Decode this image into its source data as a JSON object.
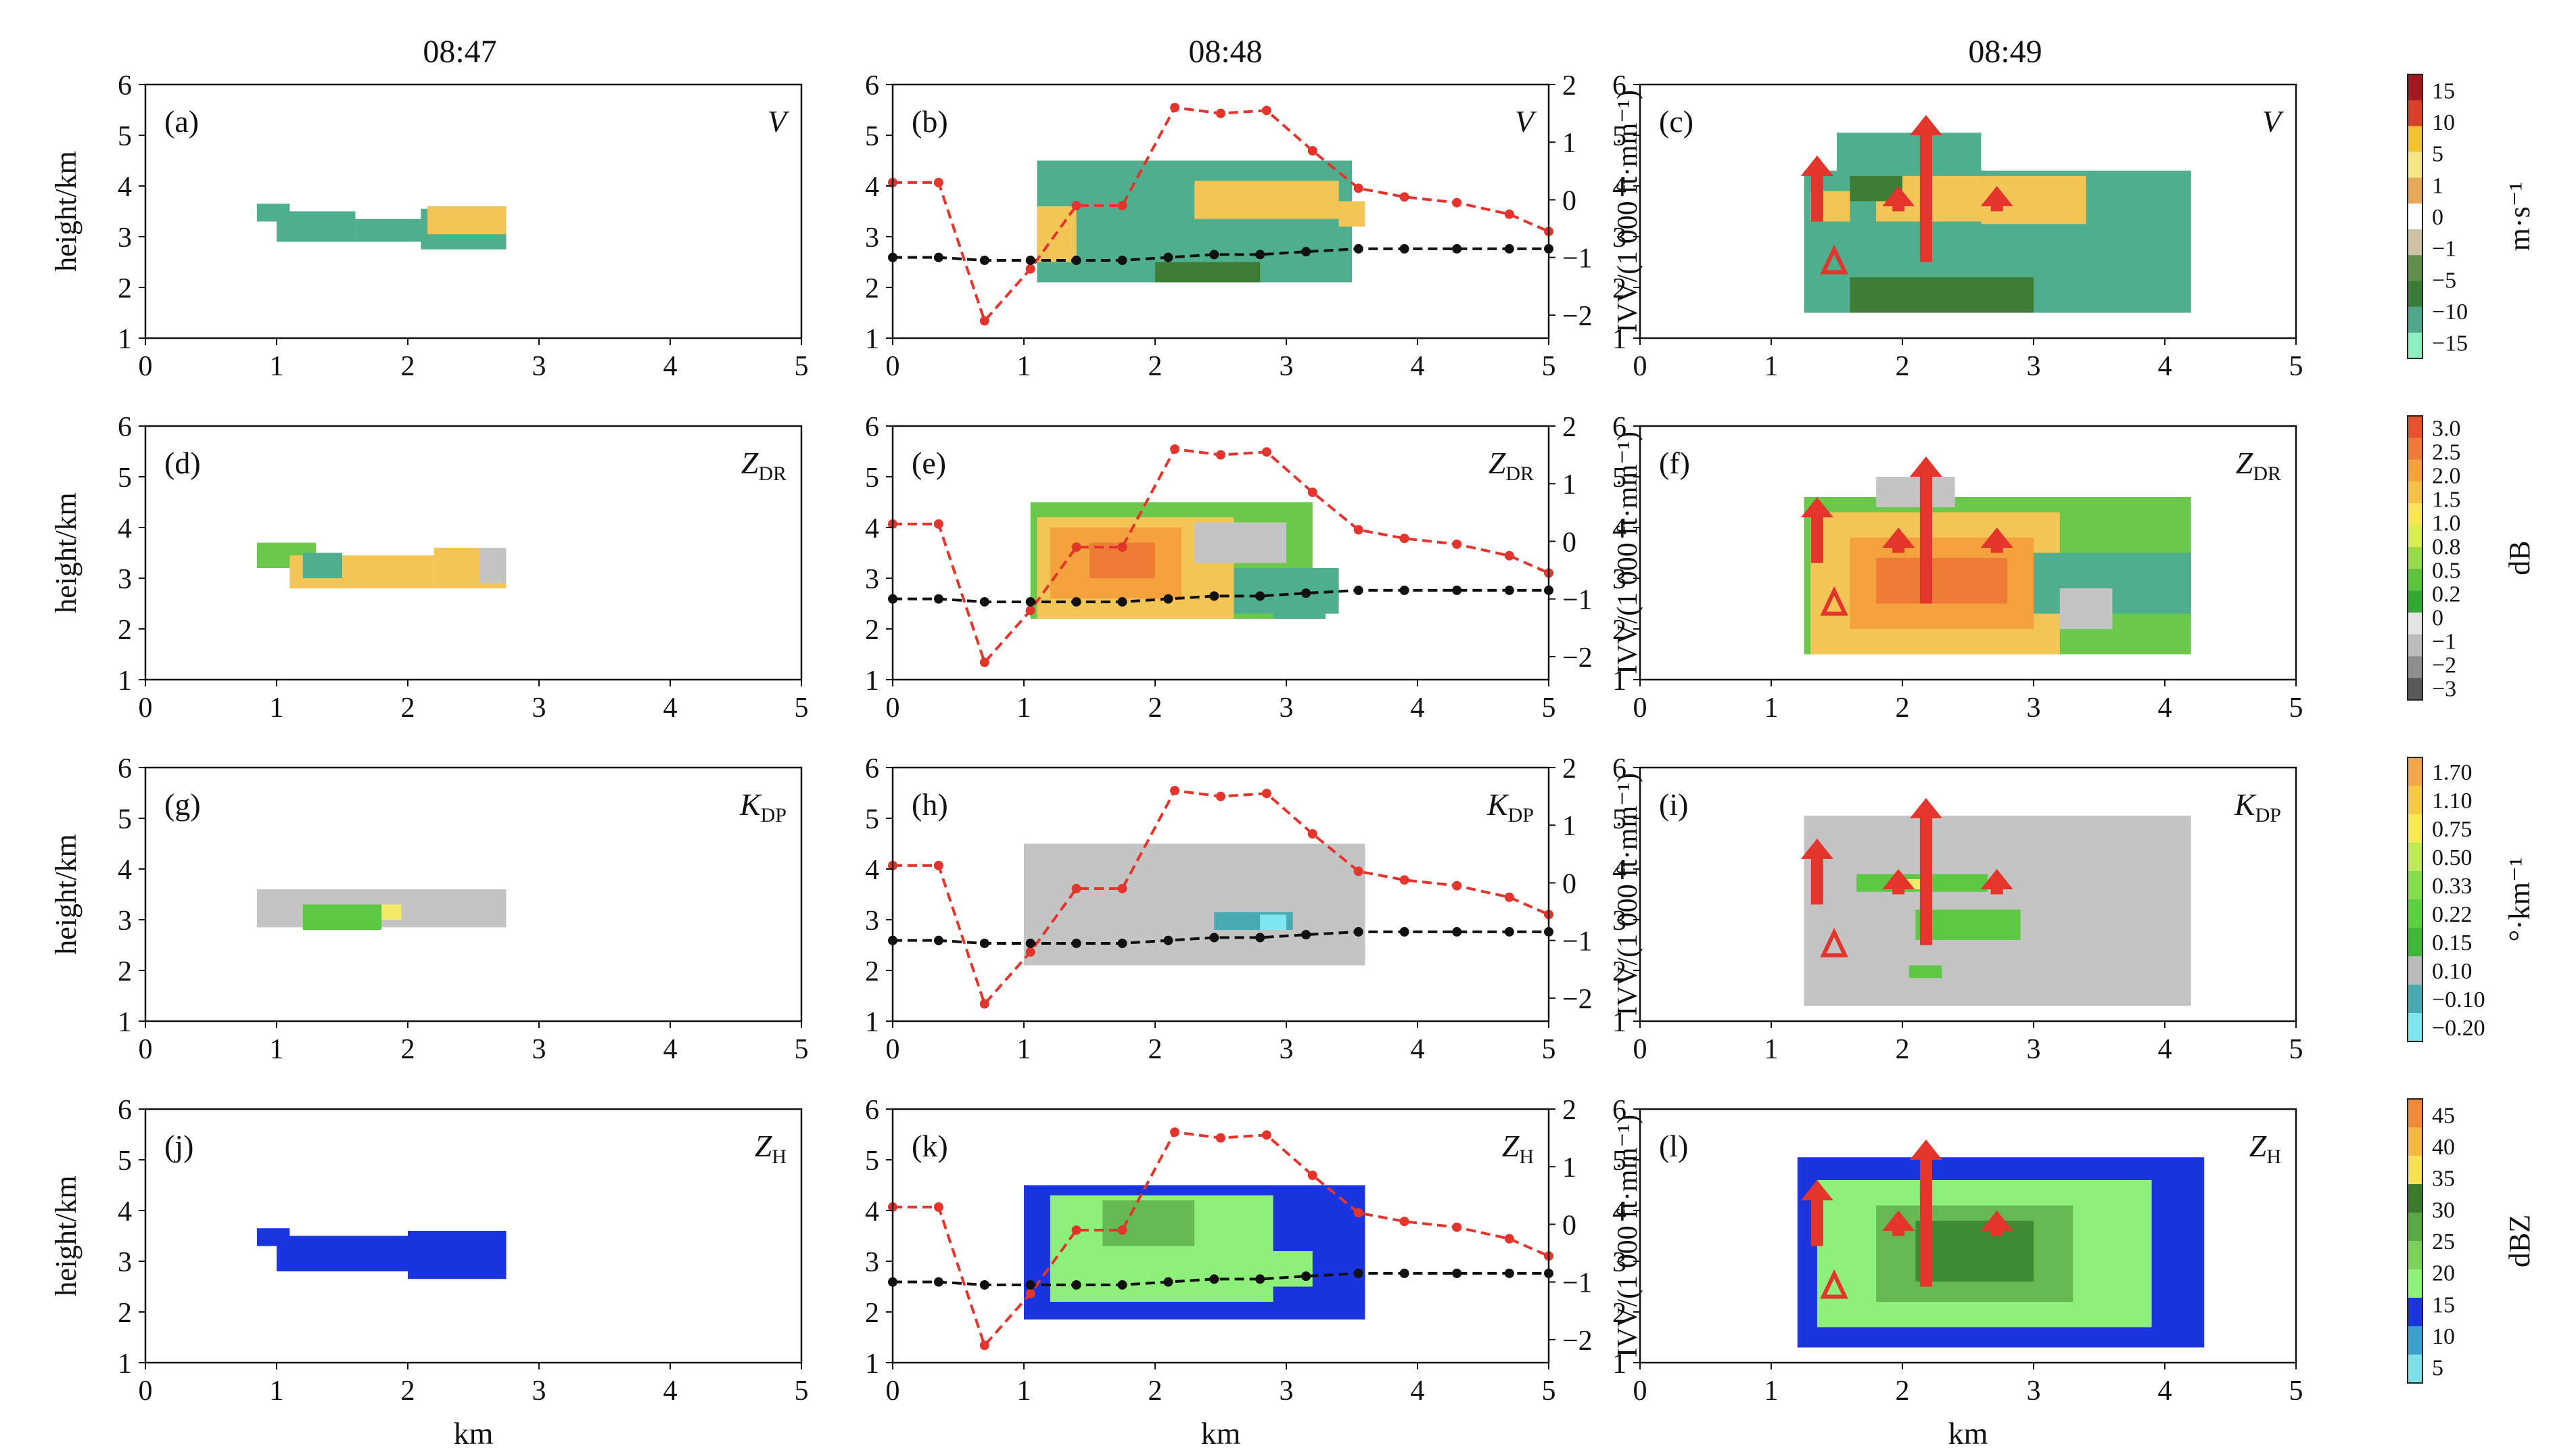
{
  "figure": {
    "column_times": [
      "08:47",
      "08:48",
      "08:49"
    ],
    "y_label": "height/km",
    "x_label": "km",
    "right_axis_label": "IVV/(1 000 ft·min⁻¹)"
  },
  "colorbars": [
    {
      "id": "V",
      "unit": "m·s⁻¹",
      "ticks": [
        "15",
        "10",
        "5",
        "1",
        "0",
        "−1",
        "−5",
        "−10",
        "−15"
      ],
      "colors": [
        "#a0191d",
        "#d9412b",
        "#f2c230",
        "#f5e68a",
        "#e8a85a",
        "#ffffff",
        "#cfc0a8",
        "#5f8f4a",
        "#3a7d3a",
        "#4fa88c",
        "#8ef0c2"
      ]
    },
    {
      "id": "ZDR",
      "unit": "dB",
      "ticks": [
        "3.0",
        "2.5",
        "2.0",
        "1.5",
        "1.0",
        "0.8",
        "0.5",
        "0.2",
        "0",
        "−1",
        "−2",
        "−3"
      ],
      "colors": [
        "#e8512e",
        "#f07a36",
        "#f5a13e",
        "#f8c24a",
        "#fbe35a",
        "#d8ec5a",
        "#9ad94a",
        "#5cc43c",
        "#33a832",
        "#e4e4e4",
        "#bdbdbd",
        "#8e8e8e",
        "#5a5a5a"
      ]
    },
    {
      "id": "KDP",
      "unit": "°·km⁻¹",
      "ticks": [
        "1.70",
        "1.10",
        "0.75",
        "0.50",
        "0.33",
        "0.22",
        "0.15",
        "0.10",
        "−0.10",
        "−0.20"
      ],
      "colors": [
        "#f2a84a",
        "#f6c84e",
        "#f9e85a",
        "#bfe95a",
        "#86de4c",
        "#5cd040",
        "#3fb83a",
        "#bbbbbb",
        "#4aaab4",
        "#7ee6ee"
      ]
    },
    {
      "id": "ZH",
      "unit": "dBZ",
      "ticks": [
        "45",
        "40",
        "35",
        "30",
        "25",
        "20",
        "15",
        "10",
        "5"
      ],
      "colors": [
        "#f08a3a",
        "#f6b64a",
        "#f9e05a",
        "#3e7a2c",
        "#5aa844",
        "#7fd05a",
        "#8ff07a",
        "#1a34e0",
        "#3aa0d0",
        "#7fe0ea"
      ]
    }
  ],
  "panels": [
    {
      "id": "a",
      "label": "(a)",
      "var_main": "V",
      "var_sub": ""
    },
    {
      "id": "b",
      "label": "(b)",
      "var_main": "V",
      "var_sub": ""
    },
    {
      "id": "c",
      "label": "(c)",
      "var_main": "V",
      "var_sub": ""
    },
    {
      "id": "d",
      "label": "(d)",
      "var_main": "Z",
      "var_sub": "DR"
    },
    {
      "id": "e",
      "label": "(e)",
      "var_main": "Z",
      "var_sub": "DR"
    },
    {
      "id": "f",
      "label": "(f)",
      "var_main": "Z",
      "var_sub": "DR"
    },
    {
      "id": "g",
      "label": "(g)",
      "var_main": "K",
      "var_sub": "DP"
    },
    {
      "id": "h",
      "label": "(h)",
      "var_main": "K",
      "var_sub": "DP"
    },
    {
      "id": "i",
      "label": "(i)",
      "var_main": "K",
      "var_sub": "DP"
    },
    {
      "id": "j",
      "label": "(j)",
      "var_main": "Z",
      "var_sub": "H"
    },
    {
      "id": "k",
      "label": "(k)",
      "var_main": "Z",
      "var_sub": "H"
    },
    {
      "id": "l",
      "label": "(l)",
      "var_main": "Z",
      "var_sub": "H"
    }
  ],
  "chart_data": {
    "type": "heatmap",
    "xlabel": "km",
    "ylabel": "height/km",
    "xlim": [
      0,
      5
    ],
    "ylim": [
      1,
      6
    ],
    "x_ticks": [
      "0",
      "1",
      "2",
      "3",
      "4",
      "5"
    ],
    "y_ticks": [
      "1",
      "2",
      "3",
      "4",
      "5",
      "6"
    ],
    "ivv_axis": {
      "label": "IVV/(1 000 ft·min⁻¹)",
      "ylim": [
        -2.4,
        2.0
      ],
      "ticks": [
        "2",
        "1",
        "0",
        "−1",
        "−2"
      ]
    },
    "ivv_series": [
      {
        "name": "IVV red",
        "x": [
          0.0,
          0.35,
          0.7,
          1.05,
          1.4,
          1.75,
          2.15,
          2.5,
          2.85,
          3.2,
          3.55,
          3.9,
          4.3,
          4.7,
          5.0
        ],
        "y": [
          0.3,
          0.3,
          -2.1,
          -1.2,
          -0.1,
          -0.1,
          1.6,
          1.5,
          1.55,
          0.85,
          0.2,
          0.05,
          -0.05,
          -0.25,
          -0.55
        ]
      },
      {
        "name": "IVV black",
        "x": [
          0.0,
          0.35,
          0.7,
          1.05,
          1.4,
          1.75,
          2.1,
          2.45,
          2.8,
          3.15,
          3.55,
          3.9,
          4.3,
          4.7,
          5.0
        ],
        "y": [
          -1.0,
          -1.0,
          -1.05,
          -1.05,
          -1.05,
          -1.05,
          -1.0,
          -0.95,
          -0.95,
          -0.9,
          -0.85,
          -0.85,
          -0.85,
          -0.85,
          -0.85
        ]
      }
    ],
    "updraft_arrows_0849": [
      {
        "x": 1.35,
        "y0": 3.3,
        "y1": 4.6
      },
      {
        "x": 2.18,
        "y0": 2.5,
        "y1": 5.4
      },
      {
        "x": 1.97,
        "y0": 3.5,
        "y1": 4.0
      },
      {
        "x": 2.72,
        "y0": 3.5,
        "y1": 4.0
      },
      {
        "x": 1.48,
        "y0": 2.3,
        "y1": 2.75,
        "hollow": true
      }
    ],
    "echo_fields": {
      "t0847_V": [
        [
          0.85,
          1.1,
          3.3,
          3.65,
          "g"
        ],
        [
          1.0,
          1.6,
          2.9,
          3.5,
          "g"
        ],
        [
          1.6,
          2.1,
          2.9,
          3.35,
          "g"
        ],
        [
          2.1,
          2.75,
          2.75,
          3.55,
          "g"
        ],
        [
          2.15,
          2.75,
          3.05,
          3.6,
          "y"
        ]
      ],
      "t0848_V": [
        [
          1.1,
          3.5,
          2.1,
          4.5,
          "g"
        ],
        [
          1.1,
          1.4,
          2.5,
          3.6,
          "y"
        ],
        [
          1.4,
          2.3,
          3.3,
          4.5,
          "g"
        ],
        [
          2.3,
          3.4,
          3.35,
          4.1,
          "y"
        ],
        [
          2.0,
          2.8,
          2.1,
          2.5,
          "d"
        ],
        [
          3.4,
          3.6,
          3.2,
          3.7,
          "y"
        ]
      ],
      "t0849_V": [
        [
          1.25,
          4.2,
          1.5,
          4.3,
          "g"
        ],
        [
          1.5,
          2.6,
          3.3,
          5.05,
          "g"
        ],
        [
          1.3,
          1.6,
          3.3,
          3.9,
          "y"
        ],
        [
          1.8,
          2.6,
          3.3,
          4.2,
          "y"
        ],
        [
          2.6,
          3.4,
          3.25,
          4.2,
          "y"
        ],
        [
          1.6,
          3.0,
          1.5,
          2.2,
          "d"
        ],
        [
          1.6,
          2.0,
          3.7,
          4.2,
          "d"
        ]
      ],
      "t0847_ZDR": [
        [
          0.85,
          1.3,
          3.2,
          3.7,
          "lg"
        ],
        [
          1.1,
          2.2,
          2.8,
          3.45,
          "y"
        ],
        [
          2.2,
          2.75,
          2.8,
          3.6,
          "y"
        ],
        [
          2.55,
          2.75,
          2.9,
          3.6,
          "gr"
        ],
        [
          1.2,
          1.5,
          3.0,
          3.5,
          "g"
        ]
      ],
      "t0848_ZDR": [
        [
          1.05,
          3.2,
          2.2,
          4.5,
          "lg"
        ],
        [
          1.1,
          2.6,
          2.2,
          4.2,
          "y"
        ],
        [
          1.2,
          2.2,
          2.6,
          4.0,
          "o"
        ],
        [
          1.5,
          2.0,
          3.0,
          3.7,
          "or"
        ],
        [
          2.6,
          3.4,
          2.3,
          3.2,
          "g"
        ],
        [
          2.3,
          3.0,
          3.3,
          4.1,
          "gr"
        ],
        [
          2.9,
          3.3,
          2.2,
          2.9,
          "g"
        ]
      ],
      "t0849_ZDR": [
        [
          1.25,
          4.2,
          1.5,
          4.6,
          "lg"
        ],
        [
          1.3,
          3.2,
          1.5,
          4.3,
          "y"
        ],
        [
          1.6,
          3.0,
          2.0,
          3.8,
          "o"
        ],
        [
          1.8,
          2.8,
          2.5,
          3.4,
          "or"
        ],
        [
          3.0,
          4.2,
          2.3,
          3.5,
          "g"
        ],
        [
          1.8,
          2.4,
          4.4,
          5.0,
          "gr"
        ],
        [
          3.2,
          3.6,
          2.0,
          2.8,
          "gr"
        ]
      ],
      "t0847_KDP": [
        [
          0.85,
          2.75,
          2.85,
          3.6,
          "gr"
        ],
        [
          1.2,
          1.8,
          2.8,
          3.3,
          "kg"
        ],
        [
          1.8,
          1.95,
          3.0,
          3.3,
          "ky"
        ]
      ],
      "t0848_KDP": [
        [
          1.0,
          3.6,
          2.1,
          4.5,
          "gr"
        ],
        [
          2.45,
          3.05,
          2.8,
          3.15,
          "kt"
        ],
        [
          2.8,
          3.0,
          2.8,
          3.1,
          "kc"
        ]
      ],
      "t0849_KDP": [
        [
          1.25,
          4.2,
          1.3,
          5.05,
          "gr"
        ],
        [
          1.65,
          2.65,
          3.55,
          3.9,
          "kg"
        ],
        [
          1.95,
          2.15,
          3.6,
          3.8,
          "ky"
        ],
        [
          2.1,
          2.9,
          2.6,
          3.2,
          "kg"
        ],
        [
          2.05,
          2.3,
          1.85,
          2.1,
          "kg"
        ]
      ],
      "t0847_ZH": [
        [
          0.85,
          1.1,
          3.3,
          3.65,
          "b"
        ],
        [
          1.0,
          2.0,
          2.8,
          3.5,
          "b"
        ],
        [
          2.0,
          2.75,
          2.65,
          3.6,
          "b"
        ]
      ],
      "t0848_ZH": [
        [
          1.0,
          3.6,
          1.85,
          4.5,
          "b"
        ],
        [
          1.2,
          2.9,
          2.2,
          4.3,
          "lgg"
        ],
        [
          1.6,
          2.3,
          3.3,
          4.2,
          "mg"
        ],
        [
          2.3,
          3.2,
          2.5,
          3.2,
          "lgg"
        ]
      ],
      "t0849_ZH": [
        [
          1.2,
          4.3,
          1.3,
          5.05,
          "b"
        ],
        [
          1.35,
          3.9,
          1.7,
          4.6,
          "lgg"
        ],
        [
          1.8,
          3.3,
          2.2,
          4.1,
          "mg"
        ],
        [
          2.1,
          3.0,
          2.6,
          3.8,
          "dg"
        ]
      ]
    }
  }
}
